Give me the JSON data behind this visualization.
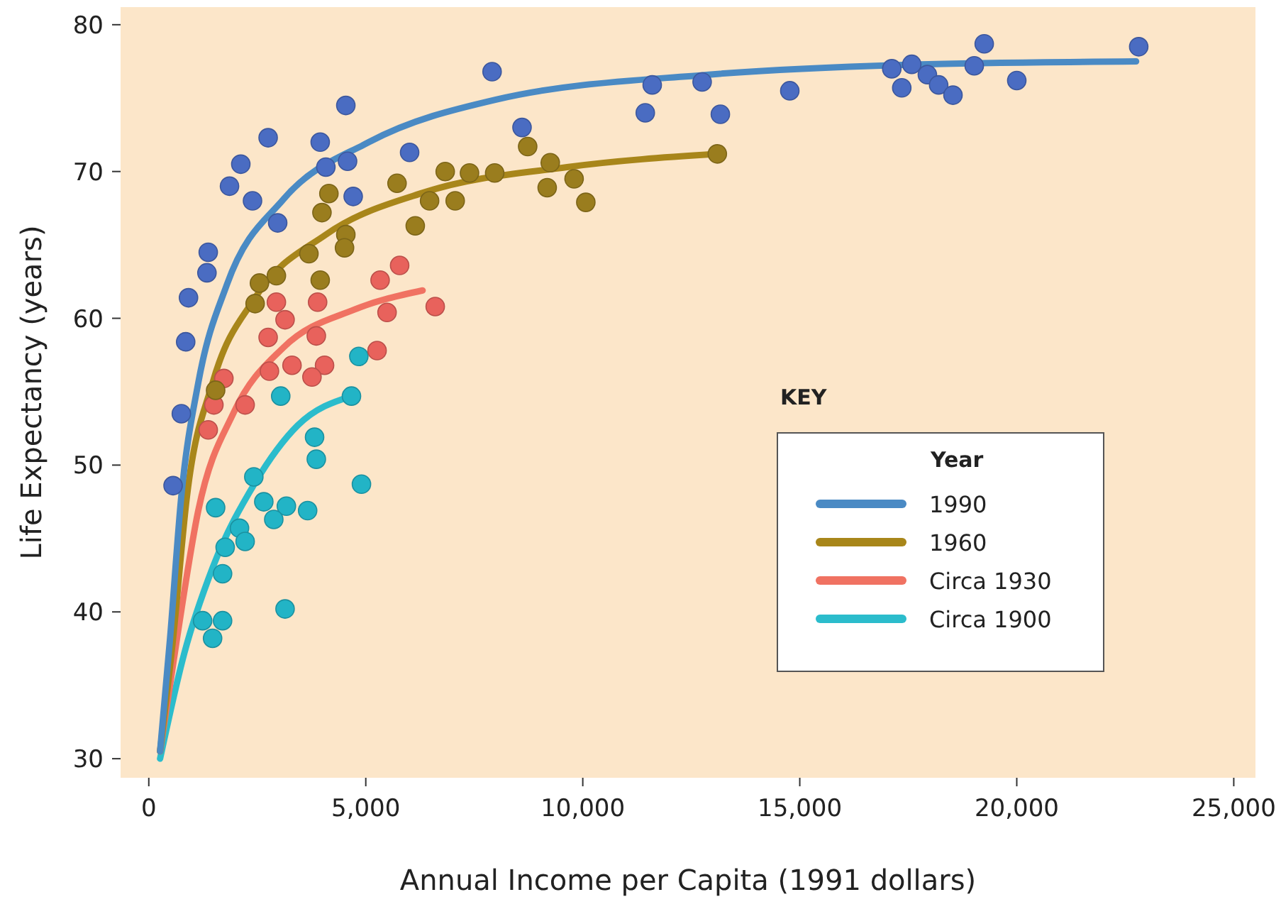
{
  "chart_data": {
    "type": "scatter",
    "xlabel": "Annual Income per Capita (1991 dollars)",
    "ylabel": "Life Expectancy (years)",
    "legend_title": "Year",
    "annotations": [
      "KEY"
    ],
    "xlim": [
      -650,
      25500
    ],
    "ylim": [
      28.7,
      81.2
    ],
    "xticks": [
      {
        "value": 0,
        "label": "0"
      },
      {
        "value": 5000,
        "label": "5,000"
      },
      {
        "value": 10000,
        "label": "10,000"
      },
      {
        "value": 15000,
        "label": "15,000"
      },
      {
        "value": 20000,
        "label": "20,000"
      },
      {
        "value": 25000,
        "label": "25,000"
      }
    ],
    "yticks": [
      30,
      40,
      50,
      60,
      70,
      80
    ],
    "grid": false,
    "legend": "right",
    "marker": "circle",
    "series": [
      {
        "color": "#4a6cc2",
        "x": [
          4540,
          2750,
          3950,
          2120,
          4080,
          4580,
          6010,
          1860,
          2390,
          4710,
          2970,
          1370,
          1340,
          915,
          850,
          750,
          560,
          7910,
          8600,
          11600,
          11440,
          12750,
          13170,
          14770,
          17120,
          17580,
          17350,
          17940,
          18200,
          18530,
          19020,
          19250,
          20000,
          22810
        ],
        "values": [
          74.5,
          72.3,
          72.0,
          70.5,
          70.3,
          70.7,
          71.3,
          69.0,
          68.0,
          68.3,
          66.5,
          64.5,
          63.1,
          61.4,
          58.4,
          53.5,
          48.6,
          76.8,
          73.0,
          75.9,
          74.0,
          76.1,
          73.9,
          75.5,
          77.0,
          77.3,
          75.7,
          76.6,
          75.9,
          75.2,
          77.2,
          78.7,
          76.2,
          78.5
        ]
      },
      {
        "color": "#9a7d1e",
        "x": [
          4150,
          3990,
          5720,
          6140,
          4540,
          4510,
          3690,
          2940,
          3950,
          2550,
          2450,
          1540,
          6830,
          7390,
          7970,
          6470,
          7060,
          8730,
          9250,
          9180,
          9800,
          10070,
          13100
        ],
        "values": [
          68.5,
          67.2,
          69.2,
          66.3,
          65.7,
          64.8,
          64.4,
          62.9,
          62.6,
          62.4,
          61.0,
          55.1,
          70.0,
          69.9,
          69.9,
          68.0,
          68.0,
          71.7,
          70.6,
          68.9,
          69.5,
          67.9,
          71.2
        ]
      },
      {
        "color": "#e8625c",
        "x": [
          5780,
          5330,
          6600,
          5490,
          2940,
          3890,
          3140,
          3860,
          2750,
          5260,
          2780,
          3300,
          4050,
          3760,
          1730,
          1500,
          2220,
          1370
        ],
        "values": [
          63.6,
          62.6,
          60.8,
          60.4,
          61.1,
          61.1,
          59.9,
          58.8,
          58.7,
          57.8,
          56.4,
          56.8,
          56.8,
          56.0,
          55.9,
          54.1,
          54.1,
          52.4
        ]
      },
      {
        "color": "#22b4c6",
        "x": [
          3040,
          4670,
          3820,
          3860,
          4900,
          2420,
          2650,
          3170,
          2880,
          3660,
          1540,
          2090,
          2220,
          1760,
          1700,
          3140,
          1240,
          1700,
          1470,
          4840
        ],
        "values": [
          54.7,
          54.7,
          51.9,
          50.4,
          48.7,
          49.2,
          47.5,
          47.2,
          46.3,
          46.9,
          47.1,
          45.7,
          44.8,
          44.4,
          42.6,
          40.2,
          39.4,
          39.4,
          38.2,
          57.4
        ]
      },
      {
        "type": "line",
        "marker": "none",
        "name": "1990",
        "color": "#4a8ac4",
        "x": [
          260,
          490,
          750,
          1140,
          1800,
          3100,
          5070,
          8000,
          12900,
          17800,
          22750
        ],
        "values": [
          30.5,
          38.2,
          47.9,
          55.6,
          62.3,
          68.1,
          72.0,
          74.9,
          76.6,
          77.3,
          77.5
        ]
      },
      {
        "type": "line",
        "marker": "none",
        "name": "1960",
        "color": "#a8861a",
        "x": [
          260,
          560,
          880,
          1470,
          2450,
          4080,
          6370,
          9640,
          13100
        ],
        "values": [
          30.5,
          38.2,
          47.9,
          55.6,
          61.4,
          65.7,
          68.6,
          70.3,
          71.2
        ]
      },
      {
        "type": "line",
        "marker": "none",
        "name": "Circa 1930",
        "color": "#f07262",
        "x": [
          260,
          650,
          1140,
          1960,
          3100,
          4740,
          6310
        ],
        "values": [
          30.5,
          38.2,
          46.9,
          53.6,
          58.0,
          60.6,
          61.9
        ]
      },
      {
        "type": "line",
        "marker": "none",
        "name": "Circa 1900",
        "color": "#2bbccc",
        "x": [
          260,
          820,
          1470,
          2450,
          3430,
          4670
        ],
        "values": [
          30.0,
          37.2,
          43.0,
          48.8,
          52.7,
          54.7
        ]
      }
    ]
  }
}
